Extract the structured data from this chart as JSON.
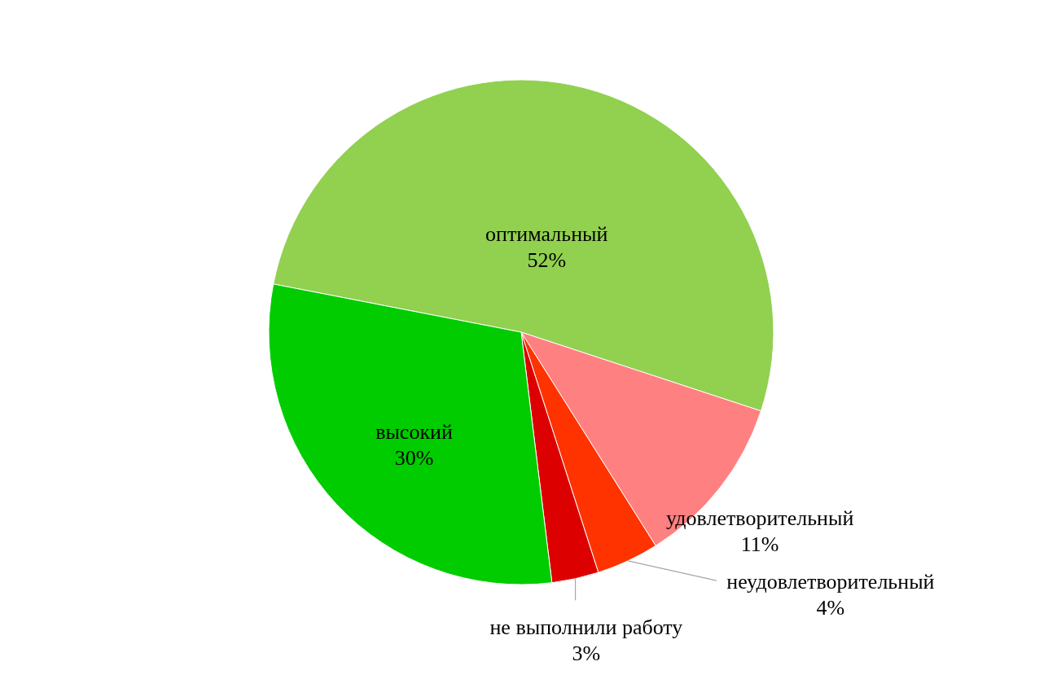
{
  "chart_data": {
    "type": "pie",
    "categories": [
      "оптимальный",
      "удовлетворительный",
      "неудовлетворительный",
      "не выполнили работу",
      "высокий"
    ],
    "values": [
      52,
      11,
      4,
      3,
      30
    ],
    "colors": [
      "#92d050",
      "#ff8080",
      "#ff3300",
      "#dd0000",
      "#00cc00"
    ],
    "value_labels": [
      "52%",
      "11%",
      "4%",
      "3%",
      "30%"
    ]
  }
}
